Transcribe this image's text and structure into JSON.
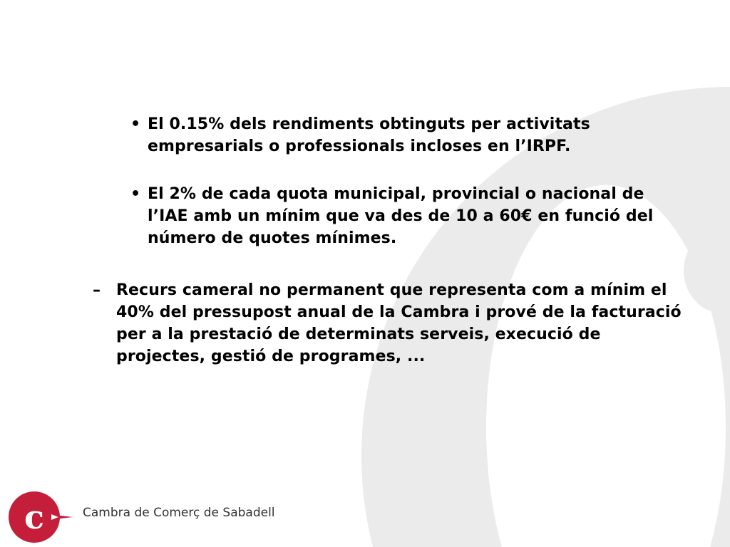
{
  "slide": {
    "bullets": [
      "El 0.15% dels rendiments obtinguts per activitats empresarials o professionals incloses en l’IRPF.",
      "El 2% de cada quota municipal, provincial o nacional de l’IAE amb un mínim que va des de 10 a 60€ en funció del número de quotes mínimes."
    ],
    "dash_items": [
      "Recurs cameral no permanent que representa com a mínim el 40% del pressupost anual de la Cambra i prové de la facturació per a la prestació de determinats serveis, execució de projectes, gestió de programes, ..."
    ],
    "bullet_mark": "•",
    "dash_mark": "–"
  },
  "footer": {
    "logo_text": "Cambra de Comerç de Sabadell",
    "brand_color": "#c41e3a"
  },
  "watermark_color": "#ebebeb"
}
